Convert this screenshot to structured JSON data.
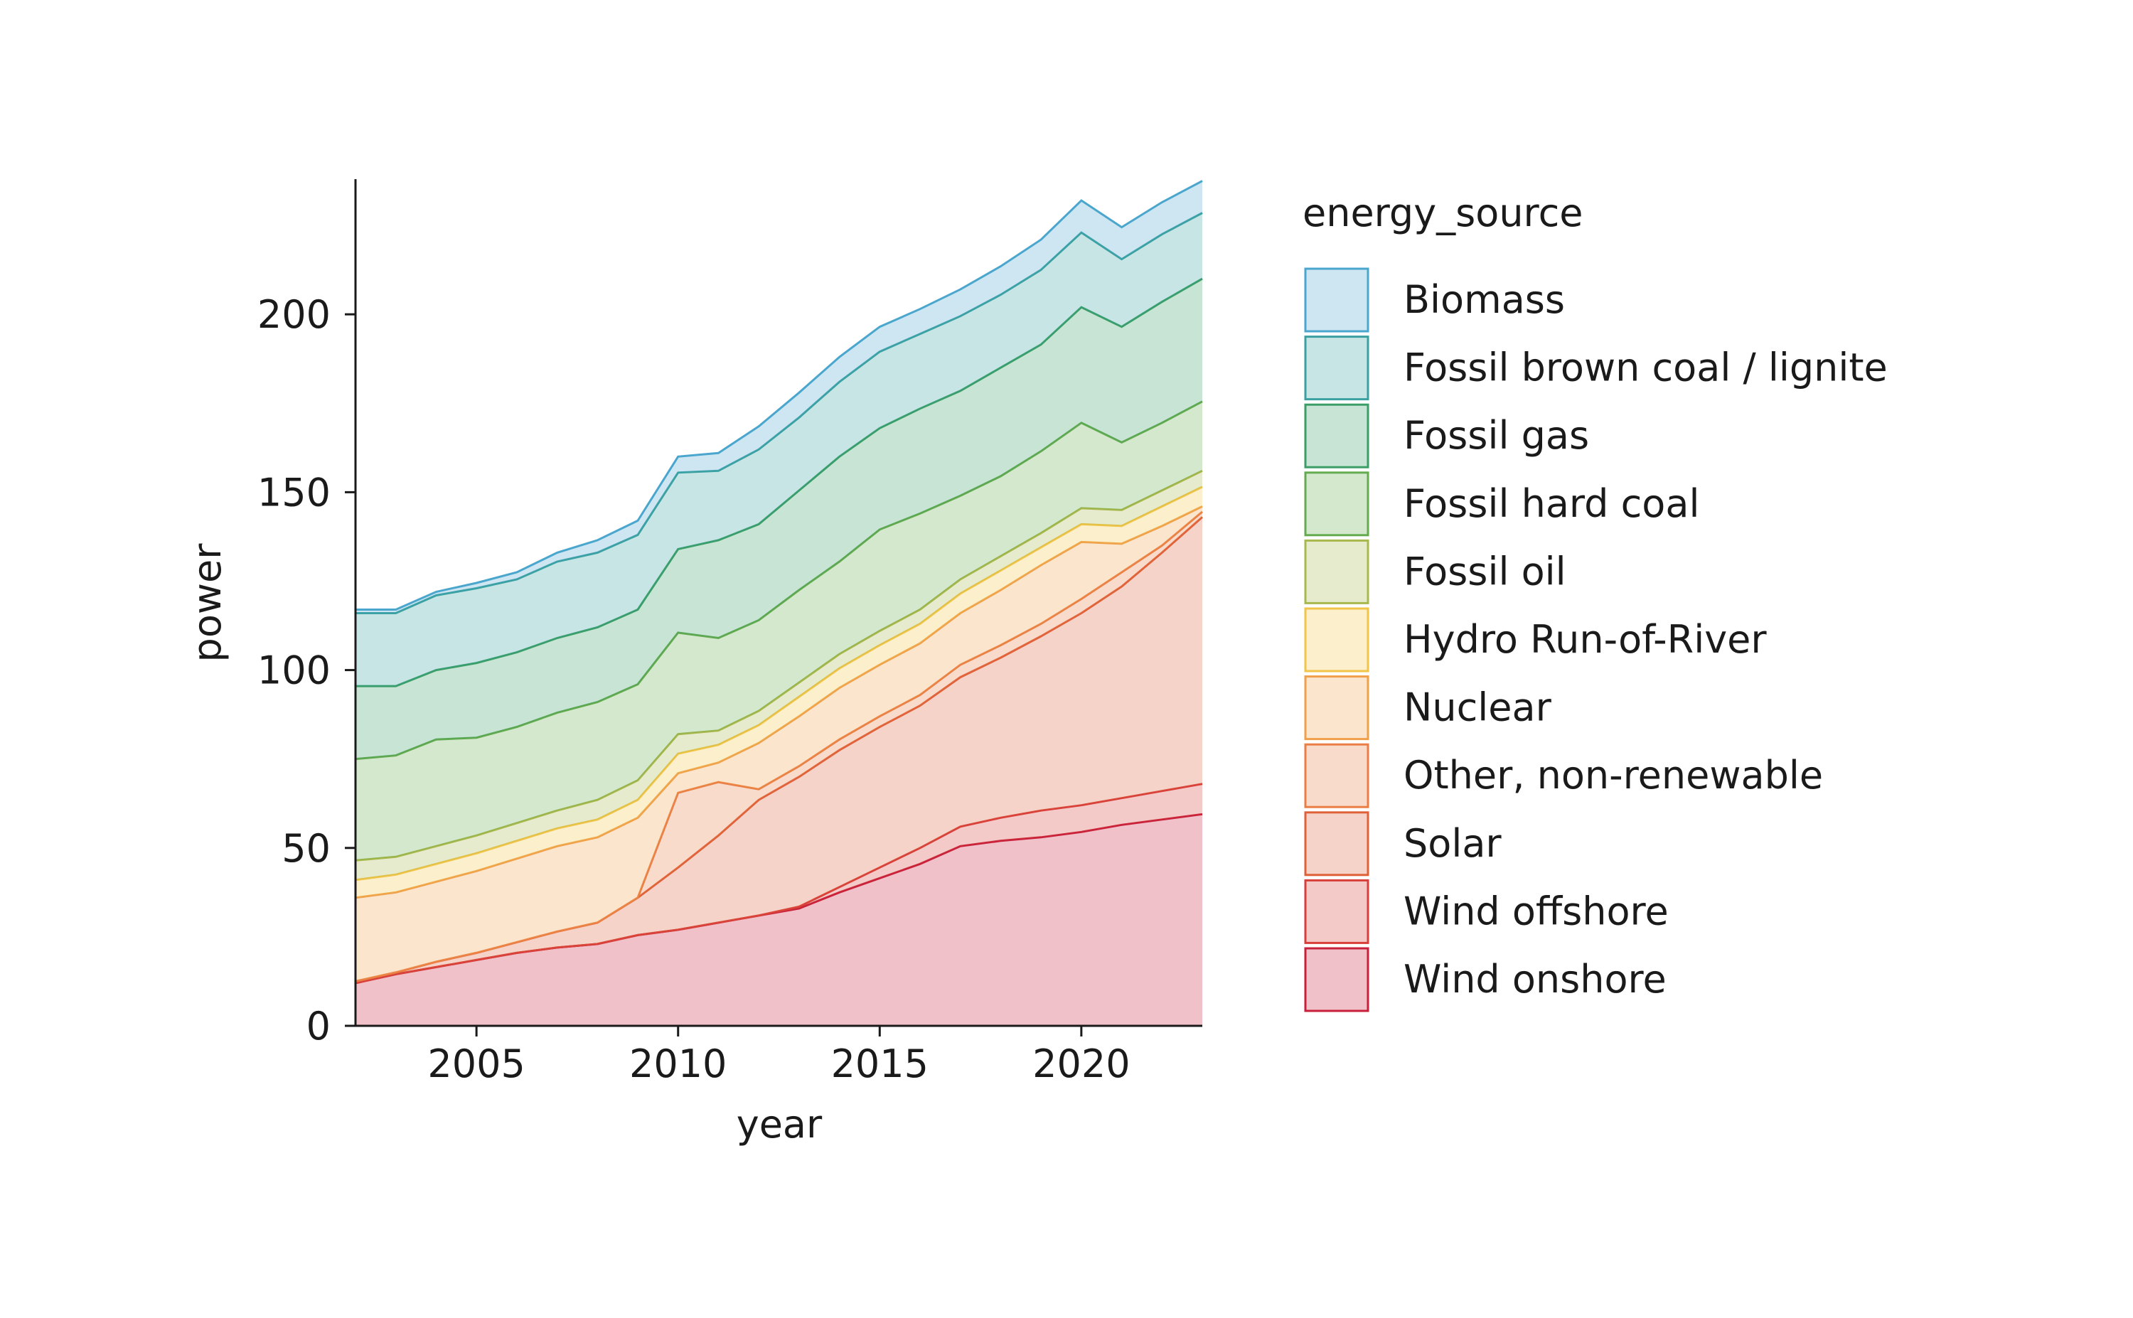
{
  "chart_data": {
    "type": "area",
    "stacked": true,
    "xlabel": "year",
    "ylabel": "power",
    "xlim": [
      2002,
      2023
    ],
    "ylim": [
      0,
      238
    ],
    "xticks": [
      2005,
      2010,
      2015,
      2020
    ],
    "yticks": [
      0,
      50,
      100,
      150,
      200
    ],
    "grid": false,
    "legend": {
      "title": "energy_source",
      "placement": "right"
    },
    "x": [
      2002,
      2003,
      2004,
      2005,
      2006,
      2007,
      2008,
      2009,
      2010,
      2011,
      2012,
      2013,
      2014,
      2015,
      2016,
      2017,
      2018,
      2019,
      2020,
      2021,
      2022,
      2023
    ],
    "series": [
      {
        "name": "Wind onshore",
        "color": "#c8203b",
        "values": [
          12,
          14.5,
          16.5,
          18.5,
          20.5,
          22,
          23,
          25.5,
          27,
          29,
          31,
          33,
          37.5,
          41.5,
          45.5,
          50.5,
          52,
          53,
          54.5,
          56.5,
          58,
          59.5
        ]
      },
      {
        "name": "Wind offshore",
        "color": "#d83f3a",
        "values": [
          0,
          0,
          0,
          0,
          0,
          0,
          0,
          0,
          0,
          0,
          0,
          0.5,
          1.5,
          3,
          4.5,
          5.5,
          6.5,
          7.5,
          7.5,
          7.5,
          8,
          8.5
        ]
      },
      {
        "name": "Solar",
        "color": "#e0603a",
        "values": [
          0.5,
          0.5,
          1.5,
          2,
          3,
          4.5,
          6,
          10.5,
          17.5,
          24.5,
          32.5,
          36.5,
          38.5,
          39.5,
          40,
          42,
          45,
          49,
          54,
          59.5,
          67,
          75
        ]
      },
      {
        "name": "Other, non-renewable",
        "color": "#ea7e45",
        "values": [
          0,
          0,
          0,
          0,
          0,
          0,
          0,
          0,
          21,
          15,
          3,
          3,
          3,
          3,
          3,
          3.5,
          3.5,
          3.5,
          4,
          4,
          2,
          1.5
        ]
      },
      {
        "name": "Nuclear",
        "color": "#f0a04b",
        "values": [
          23.5,
          22.5,
          22.5,
          23,
          23.5,
          24,
          24,
          22.5,
          5.5,
          5.5,
          13,
          14,
          14.5,
          14.5,
          14.5,
          14.5,
          15.5,
          16.5,
          16,
          8,
          5.5,
          1.5
        ]
      },
      {
        "name": "Hydro Run-of-River",
        "color": "#f2c447",
        "values": [
          5,
          5,
          5,
          5,
          5,
          5,
          5,
          5,
          5.5,
          5,
          5,
          5.5,
          5.5,
          5.5,
          5.5,
          5.5,
          5.5,
          5,
          5,
          5,
          5.5,
          5.5
        ]
      },
      {
        "name": "Fossil oil",
        "color": "#a9b84c",
        "values": [
          5.5,
          5,
          5,
          5,
          5,
          5,
          5.5,
          5.5,
          5.5,
          4,
          4,
          4,
          4,
          4,
          4,
          4,
          4,
          4,
          4.5,
          4.5,
          4.5,
          4.5
        ]
      },
      {
        "name": "Fossil hard coal",
        "color": "#64ab4f",
        "values": [
          28.5,
          28.5,
          30,
          27.5,
          27,
          27.5,
          27.5,
          27,
          28.5,
          26,
          25.5,
          26,
          26,
          28.5,
          27,
          23.5,
          22.5,
          23,
          24,
          19,
          19,
          19.5
        ]
      },
      {
        "name": "Fossil gas",
        "color": "#3a9e66",
        "values": [
          20.5,
          19.5,
          19.5,
          21,
          21,
          21,
          21,
          21,
          23.5,
          27.5,
          27,
          28,
          29.5,
          28.5,
          29.5,
          29.5,
          30.5,
          30,
          32.5,
          32.5,
          34,
          34.5
        ]
      },
      {
        "name": "Fossil brown coal / lignite",
        "color": "#3aa1a0",
        "values": [
          20.5,
          20.5,
          21,
          21,
          20.5,
          21.5,
          21,
          21,
          21.5,
          19.5,
          21,
          20.5,
          21,
          21.5,
          21,
          21,
          20.5,
          21,
          21,
          19,
          19,
          18.5
        ]
      },
      {
        "name": "Biomass",
        "color": "#4aa6cd",
        "values": [
          1,
          1,
          1,
          1.5,
          2,
          2.5,
          3.5,
          4,
          4.5,
          5,
          6.5,
          7,
          7,
          7,
          7,
          7.5,
          8,
          8.5,
          9,
          9,
          9,
          9
        ]
      }
    ]
  }
}
